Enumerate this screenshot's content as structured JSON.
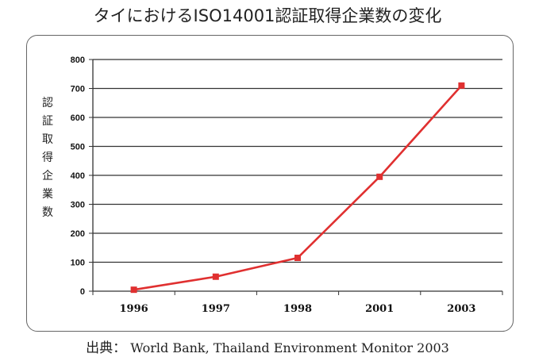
{
  "chart_data": {
    "type": "line",
    "title": "タイにおけるISO14001認証取得企業数の変化",
    "ylabel": "認証取得企業数",
    "xlabel": "",
    "categories": [
      "1996",
      "1997",
      "1998",
      "2001",
      "2003"
    ],
    "series": [
      {
        "values": [
          5,
          50,
          115,
          395,
          710
        ]
      }
    ],
    "ylim": [
      0,
      800
    ],
    "yticks": [
      0,
      100,
      200,
      300,
      400,
      500,
      600,
      700,
      800
    ],
    "grid": true,
    "legend": "none",
    "line_color": "#e03030"
  },
  "source": {
    "label": "出典：",
    "text": "World Bank, Thailand Environment Monitor 2003"
  }
}
